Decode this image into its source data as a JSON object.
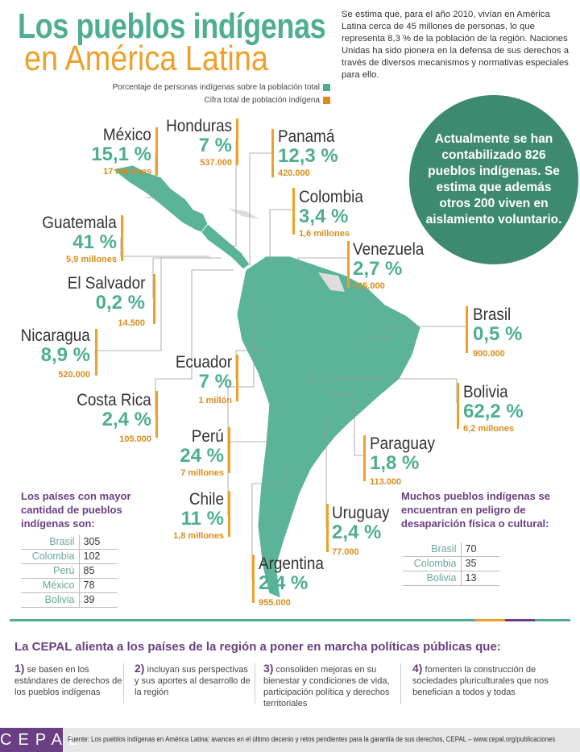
{
  "title": {
    "line1": "Los pueblos indígenas",
    "line2": "en América Latina"
  },
  "intro": "Se estima que, para el año 2010, vivían en América Latina cerca de 45 millones de personas, lo que representa 8,3 % de la población de la región. Naciones Unidas ha sido pionera en la defensa de sus derechos a través de diversos mecanismos y normativas especiales para ello.",
  "legend": [
    {
      "label": "Porcentaje de personas indígenas sobre la población total",
      "color": "#4fae92"
    },
    {
      "label": "Cifra total de población indígena",
      "color": "#d98d1c"
    }
  ],
  "circle": "Actualmente se han contabilizado 826 pueblos indígenas. Se estima que además otros 200 viven en aislamiento voluntario.",
  "countries": [
    {
      "name": "México",
      "pct": "15,1 %",
      "pop": "17 millones"
    },
    {
      "name": "Honduras",
      "pct": "7 %",
      "pop": "537.000"
    },
    {
      "name": "Panamá",
      "pct": "12,3 %",
      "pop": "420.000"
    },
    {
      "name": "Colombia",
      "pct": "3,4 %",
      "pop": "1,6 millones"
    },
    {
      "name": "Venezuela",
      "pct": "2,7 %",
      "pop": "725.000"
    },
    {
      "name": "Guatemala",
      "pct": "41 %",
      "pop": "5,9 millones"
    },
    {
      "name": "El Salvador",
      "pct": "0,2 %",
      "pop": "14.500"
    },
    {
      "name": "Nicaragua",
      "pct": "8,9 %",
      "pop": "520.000"
    },
    {
      "name": "Ecuador",
      "pct": "7 %",
      "pop": "1 millón"
    },
    {
      "name": "Costa Rica",
      "pct": "2,4 %",
      "pop": "105.000"
    },
    {
      "name": "Perú",
      "pct": "24 %",
      "pop": "7 millones"
    },
    {
      "name": "Chile",
      "pct": "11 %",
      "pop": "1,8 millones"
    },
    {
      "name": "Argentina",
      "pct": "2,4 %",
      "pop": "955.000"
    },
    {
      "name": "Uruguay",
      "pct": "2,4 %",
      "pop": "77.000"
    },
    {
      "name": "Paraguay",
      "pct": "1,8 %",
      "pop": "113.000"
    },
    {
      "name": "Bolivia",
      "pct": "62,2 %",
      "pop": "6,2 millones"
    },
    {
      "name": "Brasil",
      "pct": "0,5 %",
      "pop": "900.000"
    }
  ],
  "most_peoples": {
    "heading": "Los países con mayor cantidad de pueblos indígenas son:",
    "rows": [
      [
        "Brasil",
        "305"
      ],
      [
        "Colombia",
        "102"
      ],
      [
        "Perú",
        "85"
      ],
      [
        "México",
        "78"
      ],
      [
        "Bolivia",
        "39"
      ]
    ]
  },
  "endangered": {
    "heading": "Muchos pueblos indígenas se encuentran en peligro de desaparición física o cultural:",
    "rows": [
      [
        "Brasil",
        "70"
      ],
      [
        "Colombia",
        "35"
      ],
      [
        "Bolivia",
        "13"
      ]
    ]
  },
  "cta": "La CEPAL alienta a los países de la región a poner en marcha políticas públicas que:",
  "points": [
    {
      "num": "1)",
      "text": "se basen en los estándares de derechos de los pueblos indígenas"
    },
    {
      "num": "2)",
      "text": "incluyan sus perspectivas y sus aportes al desarrollo de la región"
    },
    {
      "num": "3)",
      "text": "consoliden mejoras en su bienestar y condiciones de vida, participación política y derechos territoriales"
    },
    {
      "num": "4)",
      "text": "fomenten la construcción de sociedades pluriculturales que nos benefician a todos y todas"
    }
  ],
  "footer": {
    "logo": "CEPAL",
    "source": "Fuente: Los pueblos indígenas en América Latina: avances en el último decenio y retos pendientes para la garantía de sus derechos, CEPAL – www.cepal.org/publicaciones"
  }
}
